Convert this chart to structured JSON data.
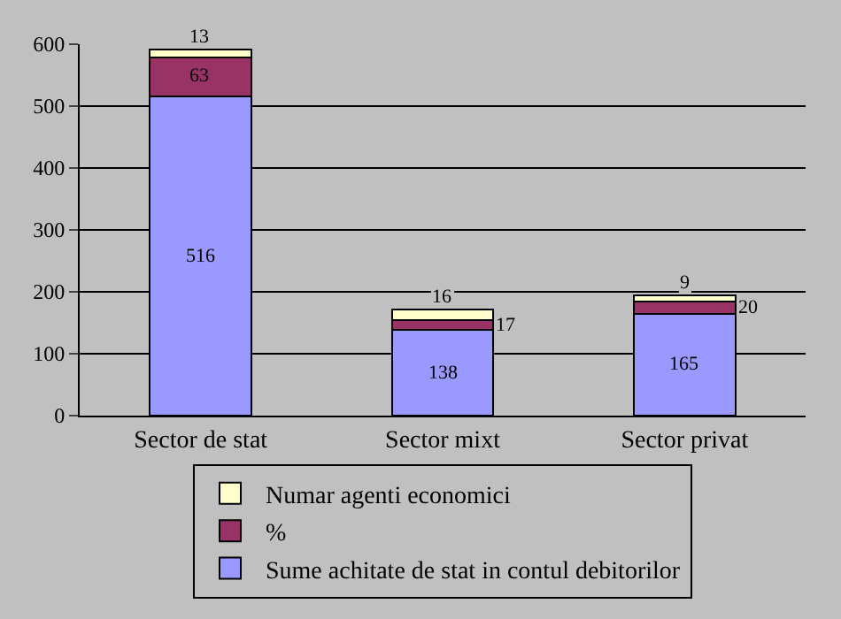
{
  "chart_data": {
    "type": "bar",
    "stacked": true,
    "categories": [
      "Sector de stat",
      "Sector mixt",
      "Sector privat"
    ],
    "series": [
      {
        "name": "Sume achitate de stat in contul debitorilor",
        "color": "#9999ff",
        "values": [
          516,
          138,
          165
        ]
      },
      {
        "name": "%",
        "color": "#993366",
        "values": [
          63,
          17,
          20
        ]
      },
      {
        "name": "Numar agenti economici",
        "color": "#ffffcc",
        "values": [
          13,
          16,
          9
        ]
      }
    ],
    "ylim": [
      0,
      600
    ],
    "yticks": [
      0,
      100,
      200,
      300,
      400,
      500,
      600
    ],
    "grid": "y",
    "legend": "bottom",
    "data_labels": true
  }
}
